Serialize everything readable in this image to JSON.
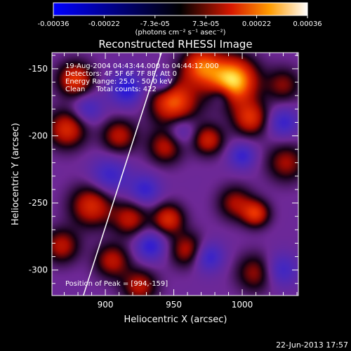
{
  "chart_data": {
    "type": "heatmap",
    "title": "Reconstructed RHESSI Image",
    "xlabel": "Heliocentric X (arcsec)",
    "ylabel": "Heliocentric Y (arcsec)",
    "xlim": [
      861,
      1041
    ],
    "ylim": [
      -319,
      -138
    ],
    "xticks": [
      900,
      950,
      1000
    ],
    "yticks": [
      -150,
      -200,
      -250,
      -300
    ],
    "colorbar": {
      "range": [
        -0.00036,
        0.00036
      ],
      "tick_labels": [
        "-0.00036",
        "-0.00022",
        "-7.3e-05",
        "7.3e-05",
        "0.00022",
        "0.00036"
      ],
      "label": "(photons cm⁻² s⁻¹ asec⁻²)"
    },
    "blobs": [
      {
        "x": 993,
        "y": -159,
        "amp": 1.0,
        "s": 12
      },
      {
        "x": 970,
        "y": -148,
        "amp": 0.65,
        "s": 10
      },
      {
        "x": 950,
        "y": -175,
        "amp": 0.7,
        "s": 12
      },
      {
        "x": 1006,
        "y": -187,
        "amp": 0.55,
        "s": 9
      },
      {
        "x": 975,
        "y": -203,
        "amp": 0.5,
        "s": 8
      },
      {
        "x": 944,
        "y": -208,
        "amp": 0.45,
        "s": 9
      },
      {
        "x": 878,
        "y": -158,
        "amp": 0.6,
        "s": 9
      },
      {
        "x": 872,
        "y": -195,
        "amp": 0.55,
        "s": 10
      },
      {
        "x": 910,
        "y": -200,
        "amp": 0.45,
        "s": 9
      },
      {
        "x": 890,
        "y": -252,
        "amp": 0.55,
        "s": 11
      },
      {
        "x": 918,
        "y": -262,
        "amp": 0.45,
        "s": 9
      },
      {
        "x": 868,
        "y": -282,
        "amp": 0.45,
        "s": 9
      },
      {
        "x": 905,
        "y": -293,
        "amp": 0.45,
        "s": 9
      },
      {
        "x": 946,
        "y": -262,
        "amp": 0.55,
        "s": 8
      },
      {
        "x": 960,
        "y": -285,
        "amp": 0.45,
        "s": 9
      },
      {
        "x": 995,
        "y": -250,
        "amp": 0.4,
        "s": 9
      },
      {
        "x": 1010,
        "y": -258,
        "amp": 0.55,
        "s": 7
      },
      {
        "x": 1032,
        "y": -220,
        "amp": 0.4,
        "s": 10
      },
      {
        "x": 1030,
        "y": -162,
        "amp": 0.35,
        "s": 9
      },
      {
        "x": 925,
        "y": -312,
        "amp": 0.45,
        "s": 9
      },
      {
        "x": 1010,
        "y": -302,
        "amp": 0.4,
        "s": 10
      },
      {
        "x": 916,
        "y": -165,
        "amp": -0.45,
        "s": 9
      },
      {
        "x": 903,
        "y": -230,
        "amp": -0.35,
        "s": 10
      },
      {
        "x": 929,
        "y": -240,
        "amp": -0.35,
        "s": 8
      },
      {
        "x": 933,
        "y": -282,
        "amp": -0.4,
        "s": 8
      },
      {
        "x": 955,
        "y": -196,
        "amp": -0.3,
        "s": 8
      },
      {
        "x": 942,
        "y": -160,
        "amp": -0.4,
        "s": 6
      },
      {
        "x": 1000,
        "y": -215,
        "amp": -0.35,
        "s": 7
      },
      {
        "x": 975,
        "y": -290,
        "amp": -0.4,
        "s": 8
      },
      {
        "x": 1028,
        "y": -300,
        "amp": -0.35,
        "s": 9
      },
      {
        "x": 1030,
        "y": -190,
        "amp": -0.35,
        "s": 8
      },
      {
        "x": 887,
        "y": -180,
        "amp": -0.3,
        "s": 8
      },
      {
        "x": 985,
        "y": -170,
        "amp": -0.3,
        "s": 6
      }
    ],
    "limb_line": [
      {
        "x": 883,
        "y": -322
      },
      {
        "x": 941,
        "y": -138
      }
    ]
  },
  "annotations": {
    "time_range": "19-Aug-2004 04:43:44.000 to 04:44:12.000",
    "detectors": "Detectors: 4F 5F 6F 7F 8F, Att 0",
    "energy": "Energy Range: 25.0 - 50.0 keV",
    "clean": "Clean     Total counts: 422",
    "peak": "Position of Peak = [994,-159]"
  },
  "footer": {
    "date": "22-Jun-2013 17:57"
  }
}
